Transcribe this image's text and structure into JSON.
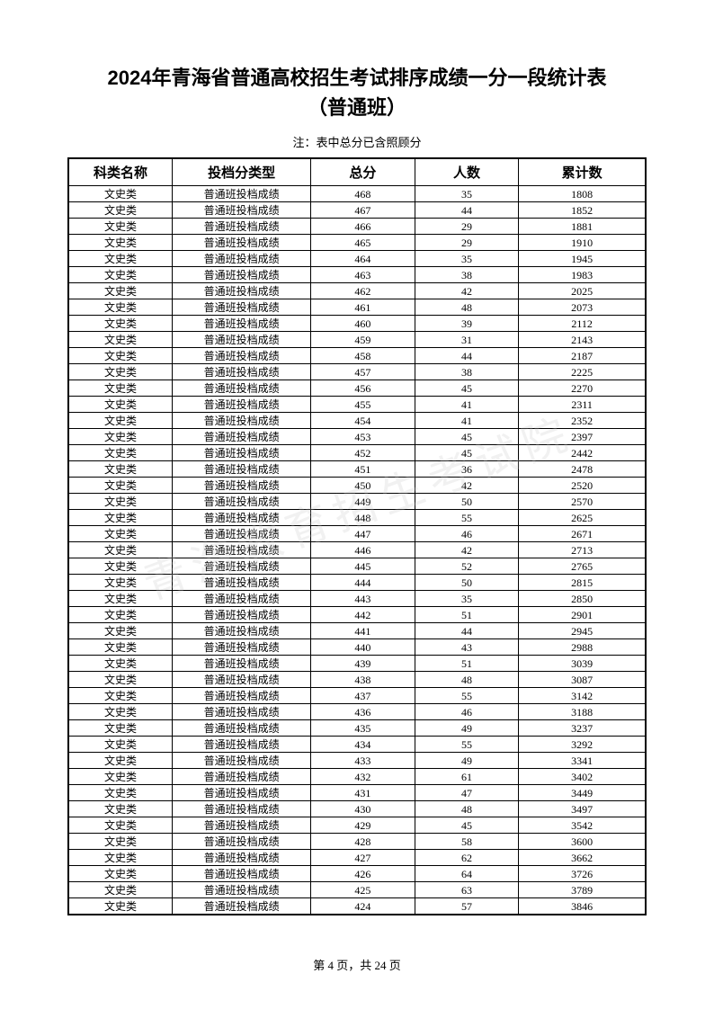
{
  "title_line1": "2024年青海省普通高校招生考试排序成绩一分一段统计表",
  "title_line2": "（普通班）",
  "note": "注：表中总分已含照顾分",
  "watermark": "青海教育招生考试院",
  "columns": [
    "科类名称",
    "投档分类型",
    "总分",
    "人数",
    "累计数"
  ],
  "category": "文史类",
  "score_type": "普通班投档成绩",
  "rows": [
    {
      "score": 468,
      "count": 35,
      "cumulative": 1808
    },
    {
      "score": 467,
      "count": 44,
      "cumulative": 1852
    },
    {
      "score": 466,
      "count": 29,
      "cumulative": 1881
    },
    {
      "score": 465,
      "count": 29,
      "cumulative": 1910
    },
    {
      "score": 464,
      "count": 35,
      "cumulative": 1945
    },
    {
      "score": 463,
      "count": 38,
      "cumulative": 1983
    },
    {
      "score": 462,
      "count": 42,
      "cumulative": 2025
    },
    {
      "score": 461,
      "count": 48,
      "cumulative": 2073
    },
    {
      "score": 460,
      "count": 39,
      "cumulative": 2112
    },
    {
      "score": 459,
      "count": 31,
      "cumulative": 2143
    },
    {
      "score": 458,
      "count": 44,
      "cumulative": 2187
    },
    {
      "score": 457,
      "count": 38,
      "cumulative": 2225
    },
    {
      "score": 456,
      "count": 45,
      "cumulative": 2270
    },
    {
      "score": 455,
      "count": 41,
      "cumulative": 2311
    },
    {
      "score": 454,
      "count": 41,
      "cumulative": 2352
    },
    {
      "score": 453,
      "count": 45,
      "cumulative": 2397
    },
    {
      "score": 452,
      "count": 45,
      "cumulative": 2442
    },
    {
      "score": 451,
      "count": 36,
      "cumulative": 2478
    },
    {
      "score": 450,
      "count": 42,
      "cumulative": 2520
    },
    {
      "score": 449,
      "count": 50,
      "cumulative": 2570
    },
    {
      "score": 448,
      "count": 55,
      "cumulative": 2625
    },
    {
      "score": 447,
      "count": 46,
      "cumulative": 2671
    },
    {
      "score": 446,
      "count": 42,
      "cumulative": 2713
    },
    {
      "score": 445,
      "count": 52,
      "cumulative": 2765
    },
    {
      "score": 444,
      "count": 50,
      "cumulative": 2815
    },
    {
      "score": 443,
      "count": 35,
      "cumulative": 2850
    },
    {
      "score": 442,
      "count": 51,
      "cumulative": 2901
    },
    {
      "score": 441,
      "count": 44,
      "cumulative": 2945
    },
    {
      "score": 440,
      "count": 43,
      "cumulative": 2988
    },
    {
      "score": 439,
      "count": 51,
      "cumulative": 3039
    },
    {
      "score": 438,
      "count": 48,
      "cumulative": 3087
    },
    {
      "score": 437,
      "count": 55,
      "cumulative": 3142
    },
    {
      "score": 436,
      "count": 46,
      "cumulative": 3188
    },
    {
      "score": 435,
      "count": 49,
      "cumulative": 3237
    },
    {
      "score": 434,
      "count": 55,
      "cumulative": 3292
    },
    {
      "score": 433,
      "count": 49,
      "cumulative": 3341
    },
    {
      "score": 432,
      "count": 61,
      "cumulative": 3402
    },
    {
      "score": 431,
      "count": 47,
      "cumulative": 3449
    },
    {
      "score": 430,
      "count": 48,
      "cumulative": 3497
    },
    {
      "score": 429,
      "count": 45,
      "cumulative": 3542
    },
    {
      "score": 428,
      "count": 58,
      "cumulative": 3600
    },
    {
      "score": 427,
      "count": 62,
      "cumulative": 3662
    },
    {
      "score": 426,
      "count": 64,
      "cumulative": 3726
    },
    {
      "score": 425,
      "count": 63,
      "cumulative": 3789
    },
    {
      "score": 424,
      "count": 57,
      "cumulative": 3846
    }
  ],
  "footer": "第 4 页，共 24 页"
}
